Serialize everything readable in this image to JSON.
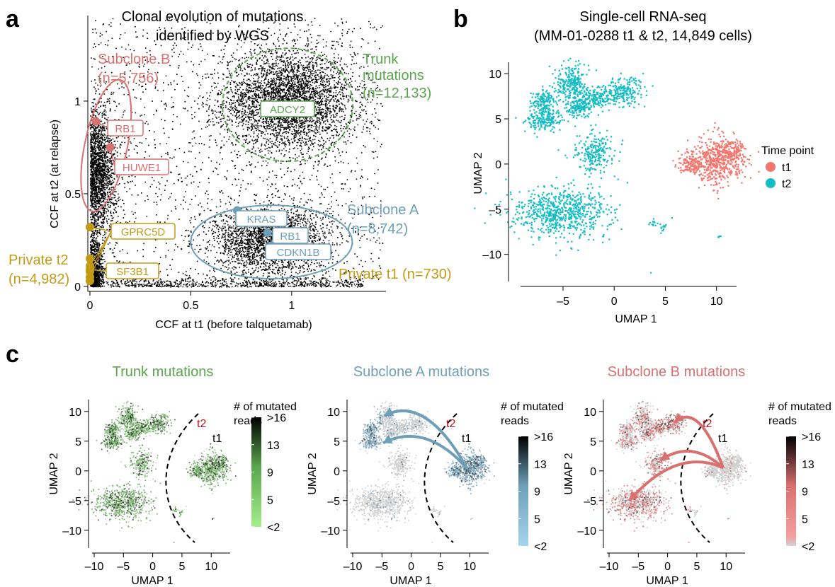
{
  "panel_letters": {
    "a": "a",
    "b": "b",
    "c": "c"
  },
  "colors": {
    "trunk": "#5aa64d",
    "subclone_a": "#6e9fb9",
    "subclone_b": "#d97070",
    "private": "#c49a12",
    "t1": "#f4756b",
    "t2": "#14bdc4",
    "grey": "#cfcfcf"
  },
  "chart_data": [
    {
      "id": "a",
      "type": "scatter",
      "title": "Clonal evolution of mutations identified by WGS",
      "title_lines": [
        "Clonal evolution of mutations",
        "identified by WGS"
      ],
      "xlabel": "CCF at t1 (before talquetamab)",
      "ylabel": "CCF at t2 (at relapse)",
      "xlim": [
        0,
        1.45
      ],
      "ylim": [
        0,
        1.45
      ],
      "xticks": [
        0,
        0.5,
        1
      ],
      "yticks": [
        0,
        0.5,
        1
      ],
      "xtick_labels": [
        "0",
        "0.5",
        "1"
      ],
      "ytick_labels": [
        "0",
        "0.5",
        "1"
      ],
      "clusters": [
        {
          "name": "Trunk",
          "label_lines": [
            "Trunk",
            "mutations",
            "(n=12,133)"
          ],
          "n": 12133,
          "center": [
            0.98,
            1.0
          ],
          "color_key": "trunk"
        },
        {
          "name": "Subclone A",
          "label_lines": [
            "Subclone A",
            "(n=8,742)"
          ],
          "n": 8742,
          "center": [
            0.9,
            0.25
          ],
          "color_key": "subclone_a"
        },
        {
          "name": "Subclone B",
          "label_lines": [
            "Subclone B",
            "(n=5,756)"
          ],
          "n": 5756,
          "center": [
            0.04,
            0.62
          ],
          "color_key": "subclone_b"
        },
        {
          "name": "Private t2",
          "label_lines": [
            "Private t2",
            "(n=4,982)"
          ],
          "n": 4982,
          "center": [
            0.0,
            0.1
          ],
          "color_key": "private"
        },
        {
          "name": "Private t1",
          "label_lines": [
            "Private t1 (n=730)"
          ],
          "n": 730,
          "center": [
            0.9,
            0.0
          ],
          "color_key": "private"
        }
      ],
      "genes": [
        {
          "gene": "ADCY2",
          "x": 0.98,
          "y": 0.94,
          "color_key": "trunk"
        },
        {
          "gene": "RB1",
          "x": 0.03,
          "y": 0.89,
          "color_key": "subclone_b"
        },
        {
          "gene": "HUWE1",
          "x": 0.1,
          "y": 0.75,
          "color_key": "subclone_b"
        },
        {
          "gene": "KRAS",
          "x": 0.73,
          "y": 0.41,
          "color_key": "subclone_a"
        },
        {
          "gene": "RB1",
          "x": 0.88,
          "y": 0.29,
          "color_key": "subclone_a"
        },
        {
          "gene": "CDKN1B",
          "x": 0.9,
          "y": 0.22,
          "color_key": "subclone_a"
        },
        {
          "gene": "GPRC5D",
          "x": 0.0,
          "y": 0.32,
          "color_key": "private"
        },
        {
          "gene": "SF3B1",
          "x": 0.0,
          "y": 0.09,
          "color_key": "private"
        }
      ]
    },
    {
      "id": "b",
      "type": "scatter",
      "title_lines": [
        "Single-cell RNA-seq",
        "(MM-01-0288 t1 & t2, 14,849 cells)"
      ],
      "xlabel": "UMAP 1",
      "ylabel": "UMAP 2",
      "xlim": [
        -9.5,
        13
      ],
      "ylim": [
        -13,
        11.5
      ],
      "xticks": [
        -5,
        0,
        5,
        10
      ],
      "yticks": [
        -10,
        -5,
        0,
        5,
        10
      ],
      "xtick_labels": [
        "–5",
        "0",
        "5",
        "10"
      ],
      "ytick_labels": [
        "–10",
        "–5",
        "0",
        "5",
        "10"
      ],
      "legend_title": "Time point",
      "legend_position": "right",
      "series": [
        {
          "name": "t1",
          "color_key": "t1"
        },
        {
          "name": "t2",
          "color_key": "t2"
        }
      ]
    },
    {
      "id": "c1",
      "type": "scatter",
      "title": "Trunk mutations",
      "xlabel": "UMAP 1",
      "ylabel": "UMAP 2",
      "xticks": [
        -10,
        -5,
        0,
        5,
        10
      ],
      "yticks": [
        -10,
        -5,
        0,
        5,
        10
      ],
      "xtick_labels": [
        "–10",
        "–5",
        "0",
        "5",
        "10"
      ],
      "ytick_labels": [
        "–10",
        "–5",
        "0",
        "5",
        "10"
      ],
      "color_key": "trunk",
      "colorbar_title": [
        "# of mutated",
        "reads"
      ],
      "colorbar_ticks": [
        ">16",
        "13",
        "9",
        "5",
        "<2"
      ],
      "annotations": [
        "t2",
        "t1"
      ]
    },
    {
      "id": "c2",
      "type": "scatter",
      "title": "Subclone A mutations",
      "xlabel": "UMAP 1",
      "ylabel": "UMAP 2",
      "xticks": [
        -10,
        -5,
        0,
        5,
        10
      ],
      "yticks": [
        -10,
        -5,
        0,
        5,
        10
      ],
      "xtick_labels": [
        "–10",
        "–5",
        "0",
        "5",
        "10"
      ],
      "ytick_labels": [
        "–10",
        "–5",
        "0",
        "5",
        "10"
      ],
      "color_key": "subclone_a",
      "colorbar_title": [
        "# of mutated",
        "reads"
      ],
      "colorbar_ticks": [
        ">16",
        "13",
        "9",
        "5",
        "<2"
      ],
      "annotations": [
        "t2",
        "t1"
      ]
    },
    {
      "id": "c3",
      "type": "scatter",
      "title": "Subclone B mutations",
      "xlabel": "UMAP 1",
      "ylabel": "UMAP 2",
      "xticks": [
        -10,
        -5,
        0,
        5,
        10
      ],
      "yticks": [
        -10,
        -5,
        0,
        5,
        10
      ],
      "xtick_labels": [
        "–10",
        "–5",
        "0",
        "5",
        "10"
      ],
      "ytick_labels": [
        "–10",
        "–5",
        "0",
        "5",
        "10"
      ],
      "color_key": "subclone_b",
      "colorbar_title": [
        "# of mutated",
        "reads"
      ],
      "colorbar_ticks": [
        ">16",
        "13",
        "9",
        "5",
        "<2"
      ],
      "annotations": [
        "t2",
        "t1"
      ]
    }
  ]
}
